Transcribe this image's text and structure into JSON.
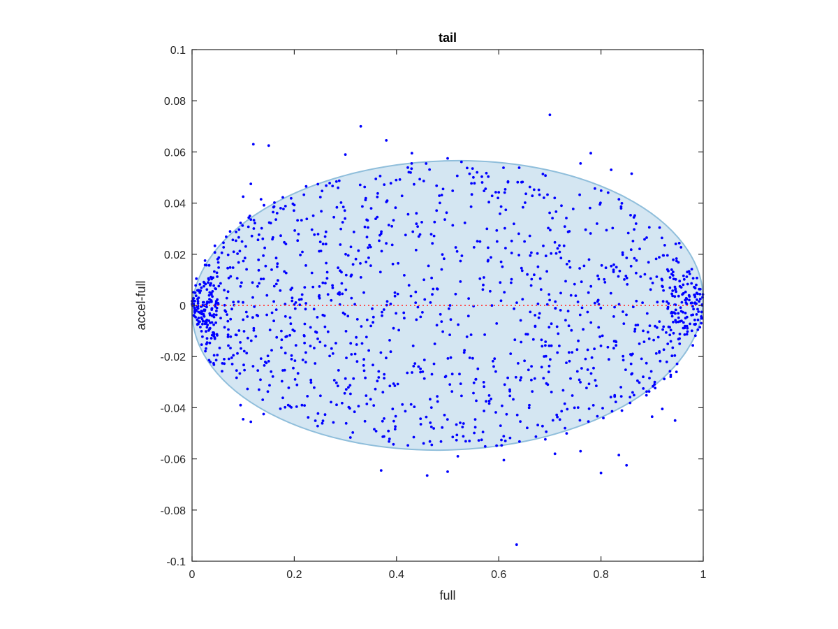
{
  "chart_data": {
    "type": "scatter",
    "title": "tail",
    "xlabel": "full",
    "ylabel": "accel-full",
    "xlim": [
      0,
      1
    ],
    "ylim": [
      -0.1,
      0.1
    ],
    "xticks": [
      0,
      0.2,
      0.4,
      0.6,
      0.8,
      1
    ],
    "xtick_labels": [
      "0",
      "0.2",
      "0.4",
      "0.6",
      "0.8",
      "1"
    ],
    "yticks": [
      -0.1,
      -0.08,
      -0.06,
      -0.04,
      -0.02,
      0,
      0.02,
      0.04,
      0.06,
      0.08,
      0.1
    ],
    "ytick_labels": [
      "-0.1",
      "-0.08",
      "-0.06",
      "-0.04",
      "-0.02",
      "0",
      "0.02",
      "0.04",
      "0.06",
      "0.08",
      "0.1"
    ],
    "grid": false,
    "colors": {
      "points": "#0000ff",
      "ellipse_fill": "#d4e6f2",
      "ellipse_edge": "#8fbedb",
      "zero_line": "#ff4d4d",
      "axes": "#262626"
    },
    "reference_line": {
      "y": 0,
      "style": "dotted"
    },
    "envelope_ellipse": {
      "x_range": [
        0,
        1
      ],
      "y_range": [
        -0.0565,
        0.0565
      ],
      "rotation_deg": -2
    },
    "outliers": [
      [
        0.12,
        0.063
      ],
      [
        0.15,
        0.0625
      ],
      [
        0.33,
        0.07
      ],
      [
        0.38,
        0.0645
      ],
      [
        0.43,
        0.0595
      ],
      [
        0.7,
        0.0745
      ],
      [
        0.78,
        0.0595
      ],
      [
        0.76,
        0.0555
      ],
      [
        0.86,
        0.0515
      ],
      [
        0.82,
        0.053
      ],
      [
        0.3,
        0.059
      ],
      [
        0.5,
        0.0575
      ],
      [
        0.115,
        0.0475
      ],
      [
        0.135,
        0.0415
      ],
      [
        0.1,
        0.0425
      ],
      [
        0.635,
        -0.0935
      ],
      [
        0.46,
        -0.0665
      ],
      [
        0.5,
        -0.065
      ],
      [
        0.37,
        -0.0645
      ],
      [
        0.61,
        -0.0605
      ],
      [
        0.52,
        -0.059
      ],
      [
        0.8,
        -0.0655
      ],
      [
        0.85,
        -0.0625
      ],
      [
        0.835,
        -0.0585
      ],
      [
        0.71,
        -0.058
      ],
      [
        0.76,
        -0.057
      ],
      [
        0.1,
        -0.0445
      ],
      [
        0.115,
        -0.0455
      ],
      [
        0.14,
        -0.0425
      ],
      [
        0.095,
        -0.039
      ],
      [
        0.215,
        -0.039
      ],
      [
        0.945,
        -0.045
      ],
      [
        0.92,
        -0.0405
      ],
      [
        0.9,
        -0.0435
      ]
    ],
    "bulk_points": {
      "count": 1400,
      "x_range": [
        0,
        1
      ],
      "within_ellipse": true
    }
  }
}
